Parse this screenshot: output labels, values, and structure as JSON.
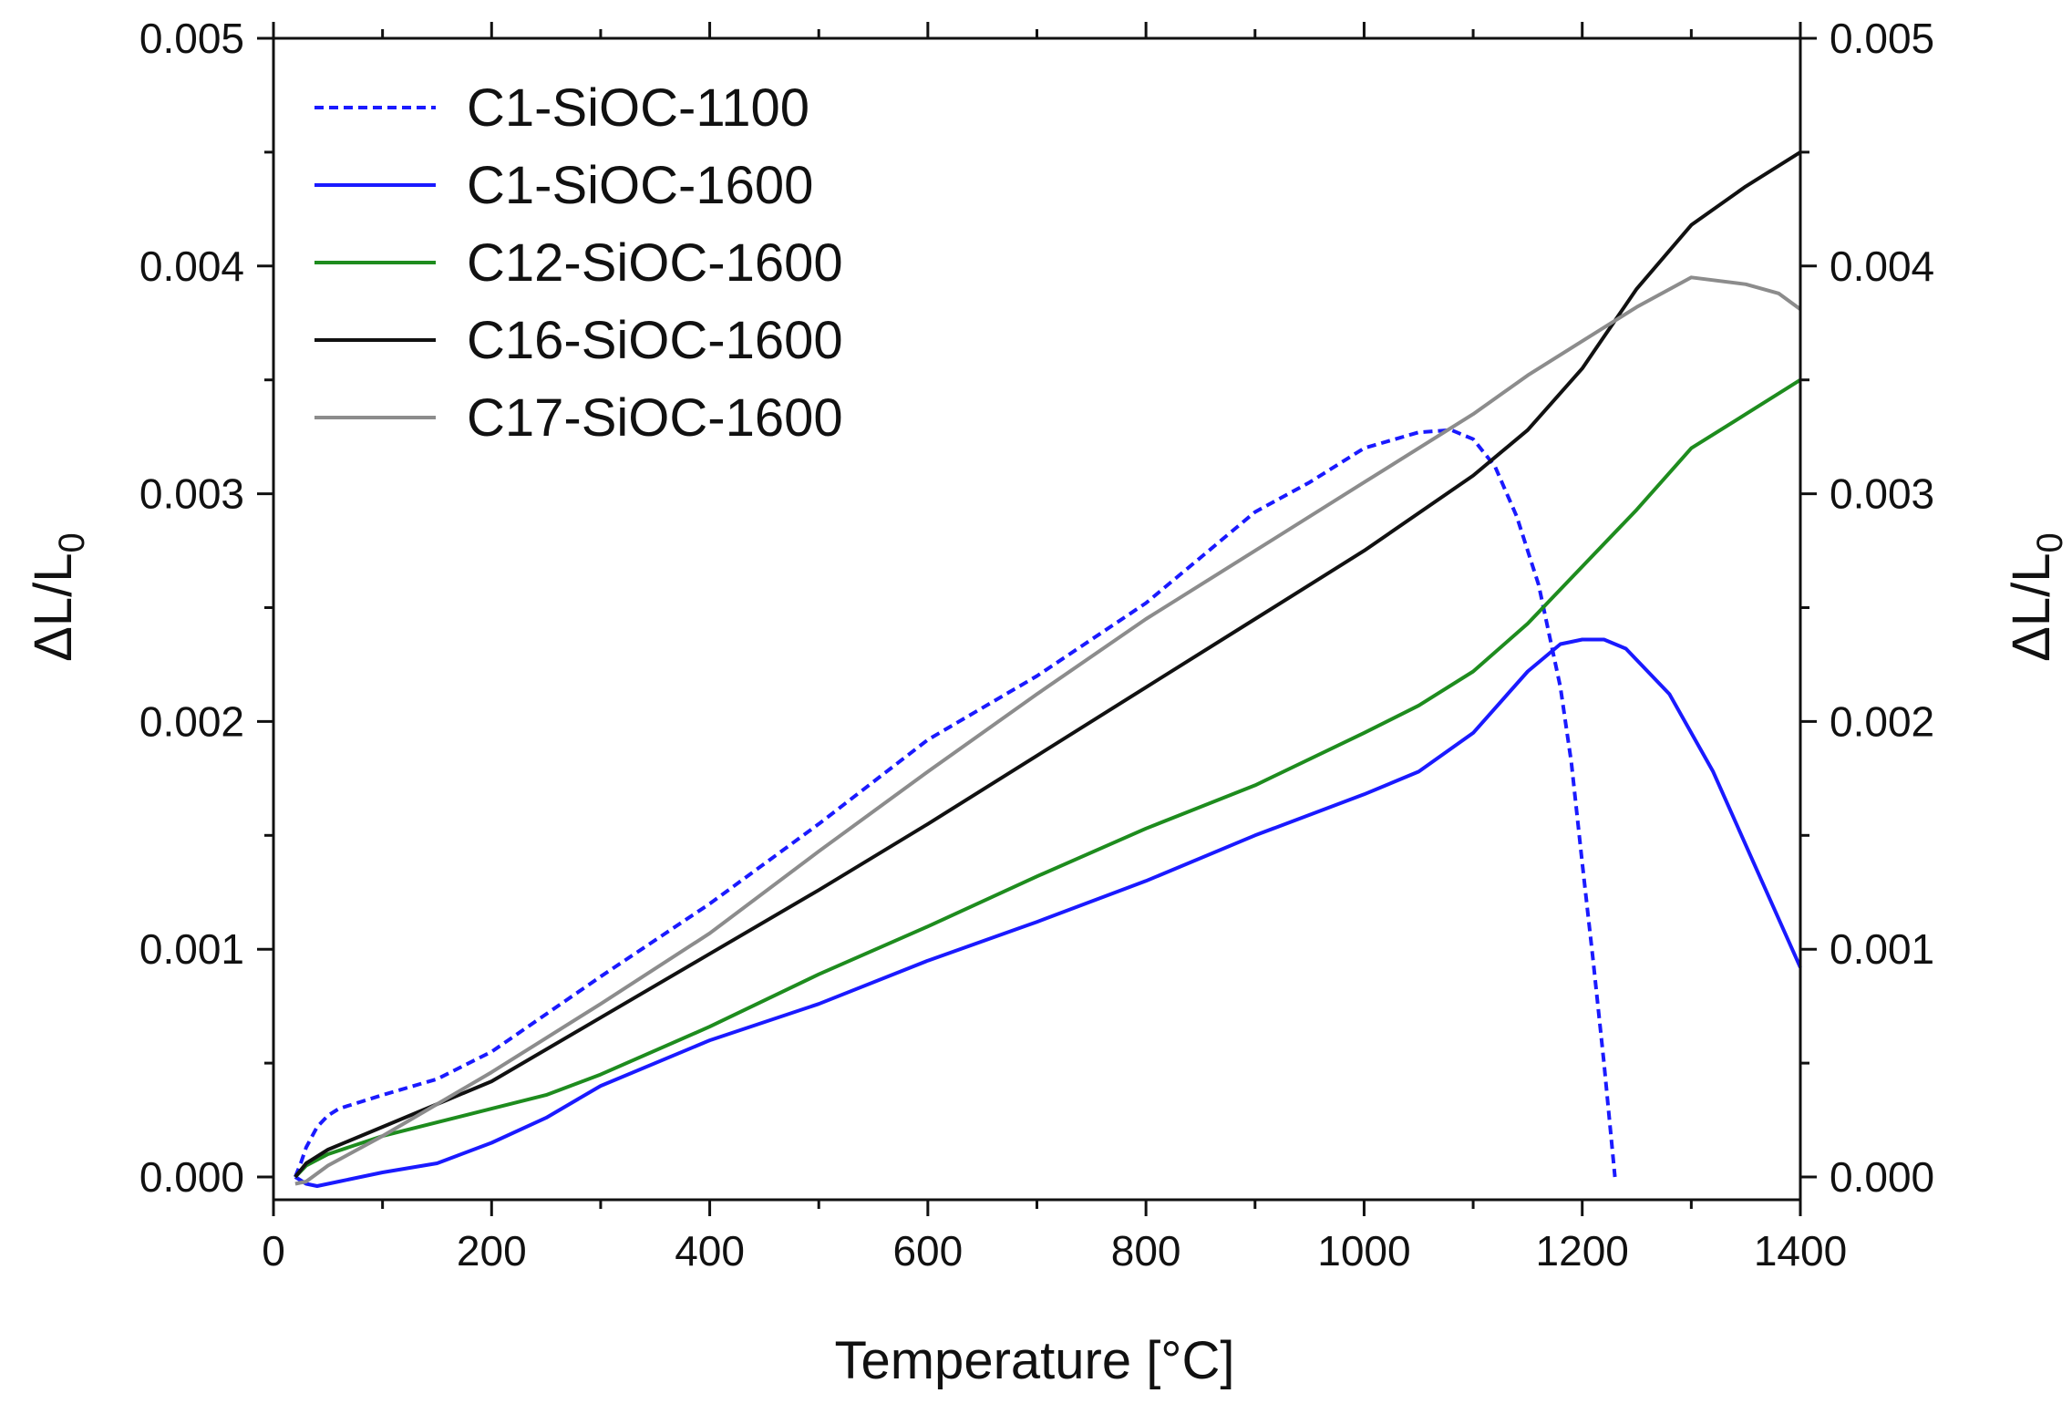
{
  "chart_data": {
    "type": "line",
    "title": "",
    "xlabel": "Temperature [°C]",
    "ylabel": {
      "base": "ΔL/L",
      "subscript": "0"
    },
    "y2label": {
      "base": "ΔL/L",
      "subscript": "0"
    },
    "xlim": [
      0,
      1400
    ],
    "ylim": [
      -0.0001,
      0.005
    ],
    "xticks": [
      0,
      200,
      400,
      600,
      800,
      1000,
      1200,
      1400
    ],
    "xtick_labels": [
      "0",
      "200",
      "400",
      "600",
      "800",
      "1000",
      "1200",
      "1400"
    ],
    "yticks": [
      0,
      0.001,
      0.002,
      0.003,
      0.004,
      0.005
    ],
    "ytick_labels": [
      "0.000",
      "0.001",
      "0.002",
      "0.003",
      "0.004",
      "0.005"
    ],
    "y2tick_labels": [
      "0.000",
      "0.001",
      "0.002",
      "0.003",
      "0.004",
      "0.005"
    ],
    "legend_position": "top-left",
    "grid": false,
    "series": [
      {
        "name": "C1-SiOC-1100",
        "color": "#1a1aff",
        "dash": "dashed",
        "x": [
          20,
          25,
          30,
          40,
          50,
          60,
          80,
          100,
          150,
          200,
          300,
          400,
          500,
          600,
          700,
          800,
          850,
          900,
          950,
          1000,
          1050,
          1080,
          1100,
          1120,
          1140,
          1160,
          1180,
          1190,
          1200,
          1210,
          1220,
          1230
        ],
        "y": [
          0.0,
          6e-05,
          0.00013,
          0.00022,
          0.00027,
          0.0003,
          0.00033,
          0.00036,
          0.00043,
          0.00055,
          0.00088,
          0.0012,
          0.00155,
          0.00192,
          0.0022,
          0.00252,
          0.00272,
          0.00292,
          0.00305,
          0.0032,
          0.00327,
          0.00328,
          0.00324,
          0.00312,
          0.0029,
          0.0026,
          0.00215,
          0.00182,
          0.00138,
          0.00095,
          0.0005,
          0.0
        ]
      },
      {
        "name": "C1-SiOC-1600",
        "color": "#1a1aff",
        "dash": "solid",
        "x": [
          20,
          30,
          40,
          60,
          100,
          150,
          200,
          250,
          300,
          400,
          500,
          600,
          700,
          800,
          900,
          1000,
          1050,
          1100,
          1150,
          1180,
          1200,
          1220,
          1240,
          1280,
          1320,
          1360,
          1400
        ],
        "y": [
          0.0,
          -3e-05,
          -4e-05,
          -2e-05,
          2e-05,
          6e-05,
          0.00015,
          0.00026,
          0.0004,
          0.0006,
          0.00076,
          0.00095,
          0.00112,
          0.0013,
          0.0015,
          0.00168,
          0.00178,
          0.00195,
          0.00222,
          0.00234,
          0.00236,
          0.00236,
          0.00232,
          0.00212,
          0.00178,
          0.00135,
          0.00092
        ]
      },
      {
        "name": "C12-SiOC-1600",
        "color": "#1e8c1e",
        "dash": "solid",
        "x": [
          20,
          30,
          50,
          100,
          150,
          200,
          250,
          300,
          400,
          500,
          600,
          700,
          800,
          900,
          1000,
          1050,
          1100,
          1150,
          1200,
          1250,
          1300,
          1350,
          1400
        ],
        "y": [
          0.0,
          5e-05,
          0.0001,
          0.00018,
          0.00024,
          0.0003,
          0.00036,
          0.00045,
          0.00066,
          0.00089,
          0.0011,
          0.00132,
          0.00153,
          0.00172,
          0.00195,
          0.00207,
          0.00222,
          0.00243,
          0.00268,
          0.00293,
          0.0032,
          0.00335,
          0.0035
        ]
      },
      {
        "name": "C16-SiOC-1600",
        "color": "#111111",
        "dash": "solid",
        "x": [
          20,
          30,
          50,
          100,
          150,
          200,
          300,
          400,
          500,
          600,
          700,
          800,
          900,
          1000,
          1100,
          1150,
          1200,
          1250,
          1300,
          1350,
          1400
        ],
        "y": [
          0.0,
          6e-05,
          0.00012,
          0.00022,
          0.00032,
          0.00042,
          0.0007,
          0.00098,
          0.00126,
          0.00155,
          0.00185,
          0.00215,
          0.00245,
          0.00275,
          0.00308,
          0.00328,
          0.00355,
          0.0039,
          0.00418,
          0.00435,
          0.0045
        ]
      },
      {
        "name": "C17-SiOC-1600",
        "color": "#8c8c8c",
        "dash": "solid",
        "x": [
          20,
          30,
          50,
          100,
          150,
          200,
          300,
          400,
          500,
          600,
          700,
          800,
          900,
          1000,
          1100,
          1150,
          1200,
          1250,
          1300,
          1350,
          1380,
          1400
        ],
        "y": [
          -3e-05,
          -2e-05,
          5e-05,
          0.00018,
          0.00032,
          0.00046,
          0.00076,
          0.00107,
          0.00143,
          0.00178,
          0.00212,
          0.00245,
          0.00275,
          0.00305,
          0.00335,
          0.00352,
          0.00367,
          0.00382,
          0.00395,
          0.00392,
          0.00388,
          0.00381
        ]
      }
    ]
  }
}
